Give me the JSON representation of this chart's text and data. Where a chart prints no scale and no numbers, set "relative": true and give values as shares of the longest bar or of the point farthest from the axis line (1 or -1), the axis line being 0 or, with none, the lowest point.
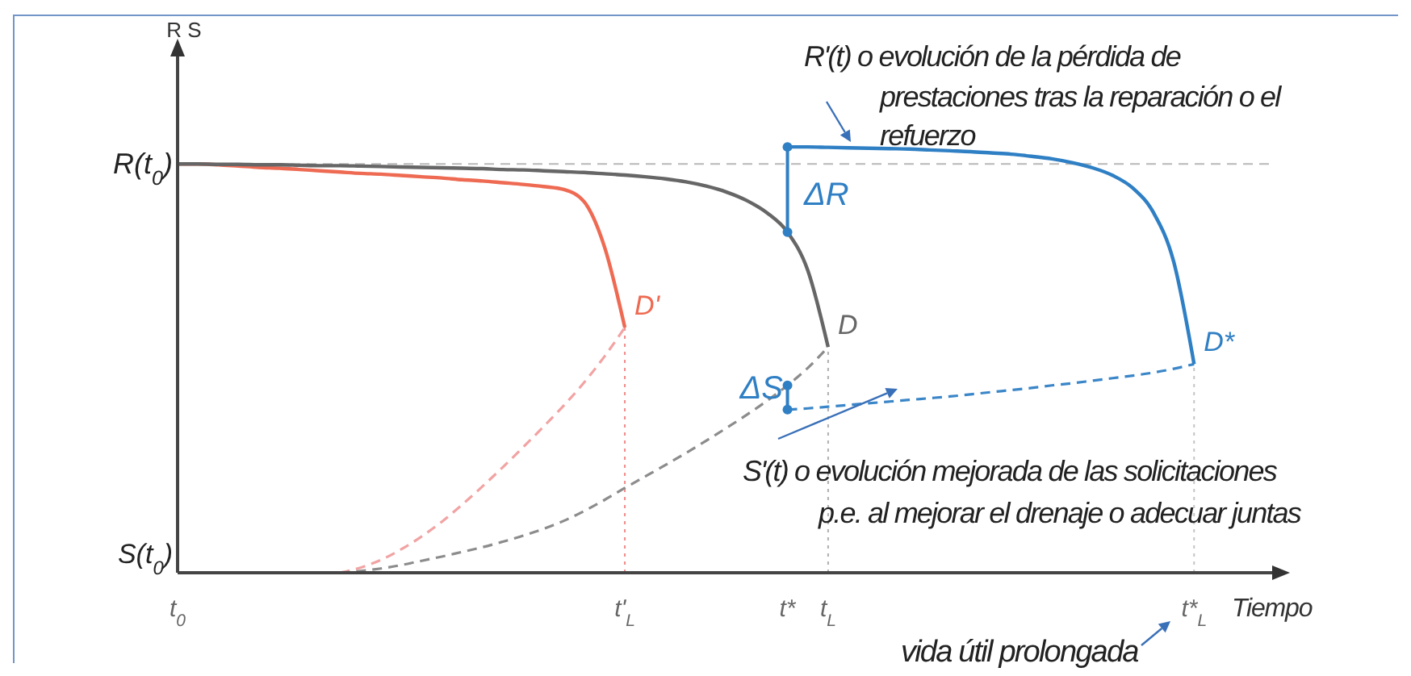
{
  "chart_data": {
    "type": "line",
    "relative": true,
    "xlabel": "Tiempo",
    "categories": [
      "t$_{0}$",
      null,
      null,
      null,
      null,
      null,
      null,
      null,
      null,
      null,
      null,
      null,
      null,
      null,
      null,
      null,
      null,
      null,
      null,
      null,
      null,
      null,
      "t'$_{L}$",
      null,
      null,
      null,
      null,
      null,
      null,
      null,
      "t*",
      null,
      "t$_{L}$",
      null,
      null,
      null,
      null,
      null,
      null,
      null,
      null,
      null,
      null,
      null,
      null,
      null,
      null,
      null,
      null,
      null,
      "t*$_{L}$",
      null,
      null,
      null,
      null
    ],
    "series": [
      {
        "color": "#f2a3a3",
        "line_style": "dashed",
        "values": [
          null,
          null,
          null,
          null,
          null,
          null,
          null,
          null,
          0,
          0.012,
          0.03,
          0.055,
          0.085,
          0.12,
          0.16,
          0.203,
          0.248,
          0.295,
          0.343,
          0.393,
          0.447,
          0.508,
          0.576,
          null,
          null,
          null,
          null,
          null,
          null,
          null,
          null,
          null,
          null,
          null,
          null,
          null,
          null,
          null,
          null,
          null,
          null,
          null,
          null,
          null,
          null,
          null,
          null,
          null,
          null,
          null,
          null,
          null,
          null,
          null,
          null
        ]
      },
      {
        "color": "#8c8c8c",
        "line_style": "dashed",
        "values": [
          null,
          null,
          null,
          null,
          null,
          null,
          null,
          null,
          0,
          0.004,
          0.01,
          0.018,
          0.028,
          0.038,
          0.049,
          0.06,
          0.073,
          0.087,
          0.103,
          0.122,
          0.145,
          0.171,
          0.199,
          0.226,
          0.253,
          0.281,
          0.31,
          0.34,
          0.371,
          0.404,
          0.44,
          0.481,
          0.53,
          null,
          null,
          null,
          null,
          null,
          null,
          null,
          null,
          null,
          null,
          null,
          null,
          null,
          null,
          null,
          null,
          null,
          null,
          null,
          null,
          null,
          null
        ]
      },
      {
        "color": "#3a86c8",
        "line_style": "dashed",
        "values": [
          null,
          null,
          null,
          null,
          null,
          null,
          null,
          null,
          null,
          null,
          null,
          null,
          null,
          null,
          null,
          null,
          null,
          null,
          null,
          null,
          null,
          null,
          null,
          null,
          null,
          null,
          null,
          null,
          null,
          null,
          0.383,
          0.386,
          0.39,
          0.394,
          0.398,
          0.402,
          0.406,
          0.41,
          0.414,
          0.419,
          0.424,
          0.429,
          0.434,
          0.44,
          0.445,
          0.451,
          0.457,
          0.463,
          0.47,
          0.479,
          0.49,
          null,
          null,
          null,
          null
        ]
      },
      {
        "color": "#ee6a52",
        "line_style": "solid",
        "values": [
          0.96,
          0.96,
          0.958,
          0.955,
          0.952,
          0.95,
          0.947,
          0.944,
          0.941,
          0.938,
          0.936,
          0.933,
          0.93,
          0.927,
          0.923,
          0.92,
          0.916,
          0.912,
          0.907,
          0.9,
          0.871,
          0.765,
          0.576,
          null,
          null,
          null,
          null,
          null,
          null,
          null,
          null,
          null,
          null,
          null,
          null,
          null,
          null,
          null,
          null,
          null,
          null,
          null,
          null,
          null,
          null,
          null,
          null,
          null,
          null,
          null,
          null,
          null,
          null,
          null,
          null
        ]
      },
      {
        "color": "#666666",
        "line_style": "solid",
        "values": [
          0.96,
          0.96,
          0.959,
          0.959,
          0.958,
          0.958,
          0.957,
          0.956,
          0.956,
          0.955,
          0.954,
          0.953,
          0.952,
          0.951,
          0.95,
          0.949,
          0.947,
          0.946,
          0.944,
          0.942,
          0.94,
          0.937,
          0.934,
          0.93,
          0.925,
          0.918,
          0.908,
          0.894,
          0.874,
          0.845,
          0.8,
          0.71,
          0.53,
          null,
          null,
          null,
          null,
          null,
          null,
          null,
          null,
          null,
          null,
          null,
          null,
          null,
          null,
          null,
          null,
          null,
          null,
          null,
          null,
          null,
          null
        ]
      },
      {
        "color": "#2f7fc4",
        "line_style": "solid",
        "values": [
          null,
          null,
          null,
          null,
          null,
          null,
          null,
          null,
          null,
          null,
          null,
          null,
          null,
          null,
          null,
          null,
          null,
          null,
          null,
          null,
          null,
          null,
          null,
          null,
          null,
          null,
          null,
          null,
          null,
          null,
          1,
          1,
          0.999,
          0.998,
          0.997,
          0.996,
          0.995,
          0.993,
          0.991,
          0.989,
          0.986,
          0.983,
          0.978,
          0.972,
          0.963,
          0.951,
          0.933,
          0.903,
          0.846,
          0.73,
          0.49,
          null,
          null,
          null,
          null
        ]
      }
    ],
    "ref_lines": [
      {
        "axis": "y",
        "value": 0.96,
        "label": "R(t$_{0}$)",
        "color": "#b8b8b8",
        "line_style": "dashed"
      },
      {
        "axis": "x",
        "value": "t'$_{L}$",
        "color": "#f08a8a",
        "line_style": "dotted"
      },
      {
        "axis": "x",
        "value": "t$_{L}$",
        "color": "#b0b0b0",
        "line_style": "dotted"
      },
      {
        "axis": "x",
        "value": "t*$_{L}$",
        "color": "#c4c4c4",
        "line_style": "dotted"
      }
    ],
    "annotations": [
      {
        "text": "D'",
        "x": "t'$_{L}$",
        "y": 0.576
      },
      {
        "text": "D",
        "x": "t$_{L}$",
        "y": 0.53
      },
      {
        "text": "D*",
        "x": "t*$_{L}$",
        "y": 0.49
      },
      "ΔR",
      "ΔS",
      "S(t$_{0}$)",
      "R S",
      "R'(t) o evolución de la pérdida de prestaciones tras la reparación o el refuerzo",
      "S'(t) o evolución mejorada de las solicitaciones p.e. al mejorar el drenaje o adecuar juntas",
      "vida útil prolongada"
    ]
  }
}
